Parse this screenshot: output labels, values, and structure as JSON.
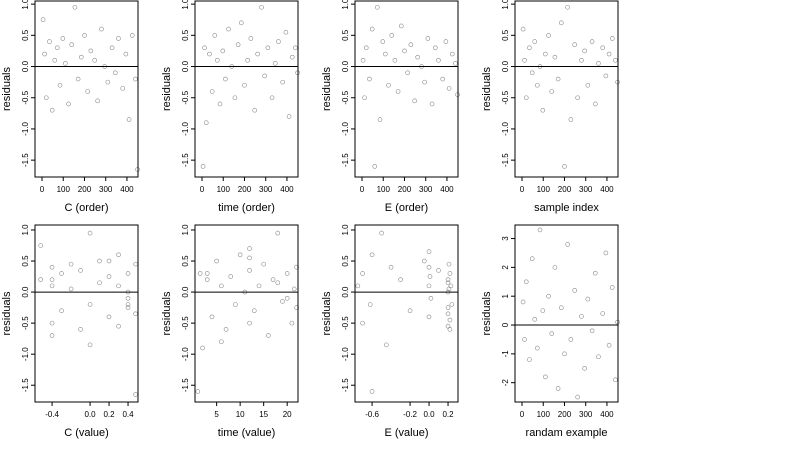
{
  "chart_data": [
    {
      "type": "scatter",
      "xlabel": "C (order)",
      "ylabel": "residuals",
      "color": "#555555",
      "hline": 0,
      "xlim": [
        -33,
        452
      ],
      "xticks": [
        0,
        100,
        200,
        300,
        400
      ],
      "ylim": [
        -1.77,
        1.05
      ],
      "yticks": [
        {
          "value": -1.5,
          "label": "-1.5"
        },
        {
          "value": -1,
          "label": "-1.0"
        },
        {
          "value": -0.5,
          "label": "-0.5"
        },
        {
          "value": 0,
          "label": "0.0"
        },
        {
          "value": 0.5,
          "label": "0.5"
        },
        {
          "value": 1,
          "label": "1.0"
        }
      ],
      "x": [
        5,
        12,
        20,
        35,
        48,
        60,
        72,
        85,
        98,
        110,
        125,
        140,
        155,
        170,
        185,
        200,
        215,
        230,
        248,
        262,
        280,
        295,
        310,
        330,
        345,
        360,
        380,
        395,
        410,
        425,
        440,
        450
      ],
      "values": [
        0.75,
        0.2,
        -0.5,
        0.4,
        -0.7,
        0.1,
        0.3,
        -0.3,
        0.45,
        0.05,
        -0.6,
        0.35,
        0.95,
        -0.2,
        0.15,
        0.5,
        -0.4,
        0.25,
        0.1,
        -0.55,
        0.6,
        0.0,
        -0.25,
        0.3,
        -0.1,
        0.45,
        -0.35,
        0.2,
        -0.85,
        0.5,
        -0.2,
        -1.65
      ]
    },
    {
      "type": "scatter",
      "xlabel": "time (order)",
      "ylabel": "residuals",
      "color": "#555555",
      "hline": 0,
      "xlim": [
        -33,
        452
      ],
      "xticks": [
        0,
        100,
        200,
        300,
        400
      ],
      "ylim": [
        -1.77,
        1.05
      ],
      "yticks": [
        {
          "value": -1.5,
          "label": "-1.5"
        },
        {
          "value": -1,
          "label": "-1.0"
        },
        {
          "value": -0.5,
          "label": "-0.5"
        },
        {
          "value": 0,
          "label": "0.0"
        },
        {
          "value": 0.5,
          "label": "0.5"
        },
        {
          "value": 1,
          "label": "1.0"
        }
      ],
      "x": [
        5,
        12,
        20,
        35,
        48,
        60,
        72,
        85,
        98,
        110,
        125,
        140,
        155,
        170,
        185,
        200,
        215,
        230,
        248,
        262,
        280,
        295,
        310,
        330,
        345,
        360,
        380,
        395,
        410,
        425,
        440,
        450
      ],
      "values": [
        -1.6,
        0.3,
        -0.9,
        0.2,
        -0.4,
        0.5,
        0.1,
        -0.6,
        0.25,
        -0.2,
        0.6,
        0.0,
        -0.5,
        0.35,
        0.7,
        -0.3,
        0.1,
        0.45,
        -0.7,
        0.2,
        0.95,
        -0.15,
        0.3,
        -0.5,
        0.05,
        0.4,
        -0.25,
        0.55,
        -0.8,
        0.15,
        0.3,
        -0.1
      ]
    },
    {
      "type": "scatter",
      "xlabel": "E (order)",
      "ylabel": "residuals",
      "color": "#555555",
      "hline": 0,
      "xlim": [
        -33,
        452
      ],
      "xticks": [
        0,
        100,
        200,
        300,
        400
      ],
      "ylim": [
        -1.77,
        1.05
      ],
      "yticks": [
        {
          "value": -1.5,
          "label": "-1.5"
        },
        {
          "value": -1,
          "label": "-1.0"
        },
        {
          "value": -0.5,
          "label": "-0.5"
        },
        {
          "value": 0,
          "label": "0.0"
        },
        {
          "value": 0.5,
          "label": "0.5"
        },
        {
          "value": 1,
          "label": "1.0"
        }
      ],
      "x": [
        5,
        12,
        20,
        35,
        48,
        60,
        72,
        85,
        98,
        110,
        125,
        140,
        155,
        170,
        185,
        200,
        215,
        230,
        248,
        262,
        280,
        295,
        310,
        330,
        345,
        360,
        380,
        395,
        410,
        425,
        440,
        450
      ],
      "values": [
        0.1,
        -0.5,
        0.3,
        -0.2,
        0.6,
        -1.6,
        0.95,
        -0.85,
        0.4,
        0.2,
        -0.3,
        0.5,
        0.1,
        -0.4,
        0.65,
        0.25,
        -0.1,
        0.35,
        -0.55,
        0.15,
        0.0,
        -0.25,
        0.45,
        -0.6,
        0.3,
        0.1,
        -0.2,
        0.4,
        -0.35,
        0.2,
        0.05,
        -0.45
      ]
    },
    {
      "type": "scatter",
      "xlabel": "sample index",
      "ylabel": "residuals",
      "color": "#555555",
      "hline": 0,
      "xlim": [
        -33,
        452
      ],
      "xticks": [
        0,
        100,
        200,
        300,
        400
      ],
      "ylim": [
        -1.77,
        1.05
      ],
      "yticks": [
        {
          "value": -1.5,
          "label": "-1.5"
        },
        {
          "value": -1,
          "label": "-1.0"
        },
        {
          "value": -0.5,
          "label": "-0.5"
        },
        {
          "value": 0,
          "label": "0.0"
        },
        {
          "value": 0.5,
          "label": "0.5"
        },
        {
          "value": 1,
          "label": "1.0"
        }
      ],
      "x": [
        5,
        12,
        20,
        35,
        48,
        60,
        72,
        85,
        98,
        110,
        125,
        140,
        155,
        170,
        185,
        200,
        215,
        230,
        248,
        262,
        280,
        295,
        310,
        330,
        345,
        360,
        380,
        395,
        410,
        425,
        440,
        450
      ],
      "values": [
        0.6,
        0.1,
        -0.5,
        0.3,
        -0.1,
        0.4,
        -0.3,
        0.0,
        -0.7,
        0.2,
        0.5,
        -0.4,
        0.15,
        -0.2,
        0.7,
        -1.6,
        0.95,
        -0.85,
        0.35,
        -0.5,
        0.1,
        0.25,
        -0.3,
        0.4,
        -0.6,
        0.05,
        0.3,
        -0.15,
        0.2,
        0.45,
        0.1,
        -0.25
      ]
    },
    {
      "type": "scatter",
      "xlabel": "C (value)",
      "ylabel": "residuals",
      "color": "#555555",
      "hline": 0,
      "xlim": [
        -0.58,
        0.505
      ],
      "xticks": [
        {
          "value": -0.4,
          "label": "-0.4"
        },
        {
          "value": 0,
          "label": "0.0"
        },
        0.2,
        0.4
      ],
      "ylim": [
        -1.77,
        1.08
      ],
      "yticks": [
        {
          "value": -1.5,
          "label": "-1.5"
        },
        {
          "value": -1,
          "label": "-1.0"
        },
        {
          "value": -0.5,
          "label": "-0.5"
        },
        {
          "value": 0,
          "label": "0.0"
        },
        {
          "value": 0.5,
          "label": "0.5"
        },
        {
          "value": 1,
          "label": "1.0"
        }
      ],
      "x": [
        -0.52,
        -0.52,
        -0.4,
        -0.4,
        -0.4,
        -0.4,
        -0.3,
        -0.3,
        -0.2,
        -0.2,
        -0.1,
        -0.1,
        0.0,
        0.0,
        0.1,
        0.1,
        0.2,
        0.2,
        0.3,
        0.3,
        0.3,
        0.4,
        0.4,
        0.4,
        0.4,
        0.48,
        0.48,
        -0.4,
        0.0,
        0.2,
        0.4,
        0.48
      ],
      "values": [
        0.75,
        0.2,
        -0.5,
        0.4,
        -0.7,
        0.1,
        0.3,
        -0.3,
        0.45,
        0.05,
        -0.6,
        0.35,
        0.95,
        -0.2,
        0.15,
        0.5,
        -0.4,
        0.25,
        0.1,
        -0.55,
        0.6,
        0.0,
        -0.25,
        0.3,
        -0.1,
        0.45,
        -0.35,
        0.2,
        -0.85,
        0.5,
        -0.2,
        -1.65
      ]
    },
    {
      "type": "scatter",
      "xlabel": "time (value)",
      "ylabel": "residuals",
      "color": "#555555",
      "hline": 0,
      "xlim": [
        0.4,
        22.3
      ],
      "xticks": [
        5,
        10,
        15,
        20
      ],
      "ylim": [
        -1.77,
        1.08
      ],
      "yticks": [
        {
          "value": -1.5,
          "label": "-1.5"
        },
        {
          "value": -1,
          "label": "-1.0"
        },
        {
          "value": -0.5,
          "label": "-0.5"
        },
        {
          "value": 0,
          "label": "0.0"
        },
        {
          "value": 0.5,
          "label": "0.5"
        },
        {
          "value": 1,
          "label": "1.0"
        }
      ],
      "x": [
        1,
        1.5,
        2,
        3,
        4,
        5,
        6,
        7,
        8,
        9,
        10,
        11,
        12,
        12,
        12,
        13,
        14,
        15,
        16,
        17,
        18,
        19,
        20,
        21,
        21.5,
        22,
        22,
        12,
        6,
        18,
        3,
        20
      ],
      "values": [
        -1.6,
        0.3,
        -0.9,
        0.2,
        -0.4,
        0.5,
        0.1,
        -0.6,
        0.25,
        -0.2,
        0.6,
        0.0,
        -0.5,
        0.35,
        0.7,
        -0.3,
        0.1,
        0.45,
        -0.7,
        0.2,
        0.95,
        -0.15,
        0.3,
        -0.5,
        0.05,
        0.4,
        -0.25,
        0.55,
        -0.8,
        0.15,
        0.3,
        -0.1
      ]
    },
    {
      "type": "scatter",
      "xlabel": "E (value)",
      "ylabel": "residuals",
      "color": "#555555",
      "hline": 0,
      "xlim": [
        -0.78,
        0.305
      ],
      "xticks": [
        {
          "value": -0.6,
          "label": "-0.6"
        },
        {
          "value": -0.2,
          "label": "-0.2"
        },
        {
          "value": 0,
          "label": "0.0"
        },
        0.2
      ],
      "ylim": [
        -1.77,
        1.08
      ],
      "yticks": [
        {
          "value": -1.5,
          "label": "-1.5"
        },
        {
          "value": -1,
          "label": "-1.0"
        },
        {
          "value": -0.5,
          "label": "-0.5"
        },
        {
          "value": 0,
          "label": "0.0"
        },
        {
          "value": 0.5,
          "label": "0.5"
        },
        {
          "value": 1,
          "label": "1.0"
        }
      ],
      "x": [
        -0.75,
        -0.7,
        -0.7,
        -0.62,
        -0.6,
        -0.6,
        -0.5,
        -0.45,
        -0.4,
        -0.3,
        -0.2,
        -0.05,
        0.0,
        0.0,
        0.0,
        0.01,
        0.02,
        0.1,
        0.2,
        0.2,
        0.2,
        0.2,
        0.21,
        0.22,
        0.22,
        0.23,
        0.24,
        0.0,
        0.2,
        0.2,
        0.21,
        0.22
      ],
      "values": [
        0.1,
        -0.5,
        0.3,
        -0.2,
        0.6,
        -1.6,
        0.95,
        -0.85,
        0.4,
        0.2,
        -0.3,
        0.5,
        0.1,
        -0.4,
        0.65,
        0.25,
        -0.1,
        0.35,
        -0.55,
        0.15,
        0.0,
        -0.25,
        0.45,
        -0.6,
        0.3,
        0.1,
        -0.2,
        0.4,
        -0.35,
        0.2,
        0.05,
        -0.45
      ]
    },
    {
      "type": "scatter",
      "xlabel": "randam example",
      "ylabel": "residuals",
      "color": "#555555",
      "hline": 0,
      "xlim": [
        -33,
        452
      ],
      "xticks": [
        0,
        100,
        200,
        300,
        400
      ],
      "ylim": [
        -2.67,
        3.47
      ],
      "yticks": [
        -2,
        -1,
        0,
        1,
        2,
        3
      ],
      "x": [
        5,
        12,
        20,
        35,
        48,
        60,
        72,
        85,
        98,
        110,
        125,
        140,
        155,
        170,
        185,
        200,
        215,
        230,
        248,
        262,
        280,
        295,
        310,
        330,
        345,
        360,
        380,
        395,
        410,
        425,
        440,
        450
      ],
      "values": [
        0.8,
        -0.5,
        1.5,
        -1.2,
        2.3,
        0.2,
        -0.8,
        3.3,
        0.5,
        -1.8,
        1.0,
        -0.3,
        2.0,
        -2.2,
        0.6,
        -1.0,
        2.8,
        -0.5,
        1.2,
        -2.5,
        0.3,
        -1.5,
        0.9,
        -0.2,
        1.8,
        -1.1,
        0.4,
        2.5,
        -0.7,
        1.3,
        -1.9,
        0.1
      ]
    }
  ]
}
